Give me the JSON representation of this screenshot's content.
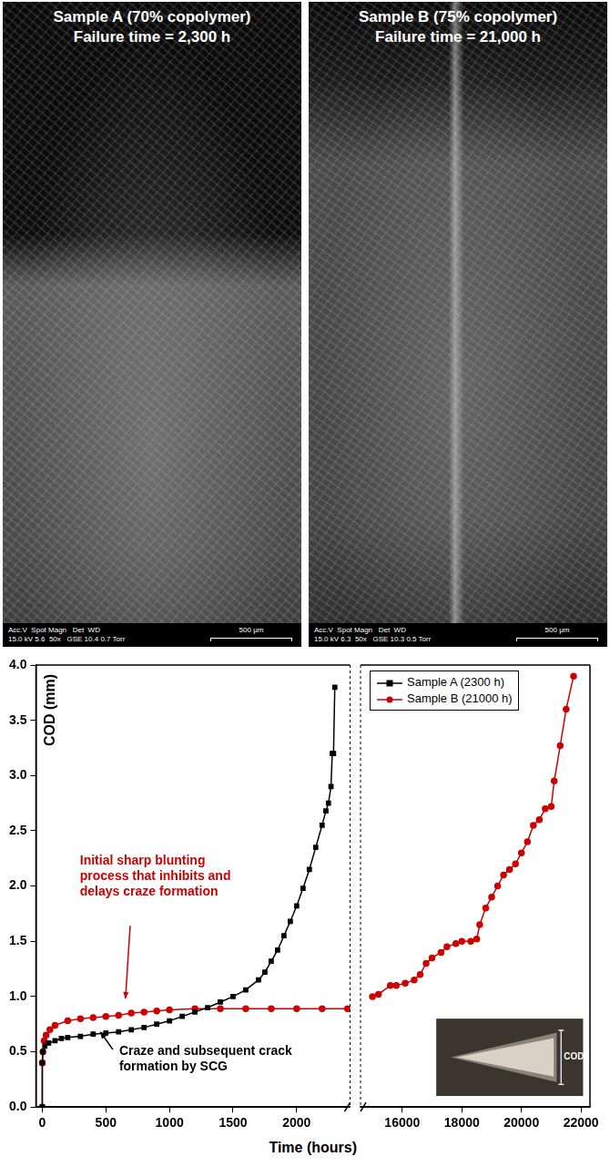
{
  "panels": [
    {
      "title": "Sample A (70% copolymer)",
      "subtitle": "Failure time = 2,300 h",
      "info_header": "Acc.V  Spot Magn   Det  WD",
      "info_values": "15.0 kV 5.6  50x   GSE 10.4 0.7 Torr",
      "scale_bar": "500 μm"
    },
    {
      "title": "Sample B (75% copolymer)",
      "subtitle": "Failure time = 21,000 h",
      "info_header": "Acc.V  Spot Magn   Det  WD",
      "info_values": "15.0 kV 6.3  50x   GSE 10.3 0.5 Torr",
      "scale_bar": "500 μm"
    }
  ],
  "chart_data": [
    {
      "type": "line",
      "xlabel": "Time (hours)",
      "ylabel": "COD (mm)",
      "xlim": [
        -50,
        2420
      ],
      "xticks": [
        0,
        500,
        1000,
        1500,
        2000
      ],
      "ylim": [
        0,
        4
      ],
      "yticks": [
        {
          "value": 0,
          "label": "0.0"
        },
        {
          "value": 0.5,
          "label": "0.5"
        },
        {
          "value": 1,
          "label": "1.0"
        },
        {
          "value": 1.5,
          "label": "1.5"
        },
        {
          "value": 2,
          "label": "2.0"
        },
        {
          "value": 2.5,
          "label": "2.5"
        },
        {
          "value": 3,
          "label": "3.0"
        },
        {
          "value": 3.5,
          "label": "3.5"
        },
        {
          "value": 4,
          "label": "4.0"
        }
      ],
      "grid": false,
      "annotations": [
        {
          "text": "Initial sharp blunting process that inhibits and delays craze formation",
          "color": "#cc0000"
        },
        {
          "text": "Craze and subsequent crack formation by SCG",
          "color": "#000000"
        }
      ],
      "series": [
        {
          "color": "#000000",
          "marker": "square",
          "x": [
            0,
            0,
            5,
            20,
            50,
            100,
            150,
            200,
            300,
            400,
            500,
            600,
            700,
            800,
            900,
            1000,
            1100,
            1200,
            1300,
            1400,
            1500,
            1600,
            1700,
            1750,
            1800,
            1850,
            1900,
            1950,
            2000,
            2050,
            2100,
            2150,
            2200,
            2230,
            2250,
            2270,
            2280,
            2290,
            2300
          ],
          "values": [
            0,
            0.4,
            0.5,
            0.55,
            0.58,
            0.6,
            0.62,
            0.63,
            0.64,
            0.66,
            0.67,
            0.68,
            0.7,
            0.72,
            0.75,
            0.78,
            0.82,
            0.86,
            0.9,
            0.95,
            1.0,
            1.06,
            1.15,
            1.22,
            1.32,
            1.42,
            1.55,
            1.68,
            1.82,
            1.98,
            2.15,
            2.35,
            2.55,
            2.68,
            2.75,
            2.9,
            3.2,
            3.2,
            3.8
          ]
        },
        {
          "color": "#cc0000",
          "marker": "circle",
          "x": [
            0,
            0,
            5,
            15,
            30,
            60,
            100,
            200,
            300,
            400,
            500,
            600,
            700,
            800,
            900,
            1000,
            1200,
            1400,
            1600,
            1800,
            2000,
            2200,
            2400
          ],
          "values": [
            0,
            0.4,
            0.5,
            0.6,
            0.65,
            0.7,
            0.74,
            0.78,
            0.8,
            0.81,
            0.82,
            0.83,
            0.85,
            0.86,
            0.87,
            0.88,
            0.89,
            0.89,
            0.89,
            0.89,
            0.89,
            0.89,
            0.89
          ]
        }
      ]
    },
    {
      "type": "line",
      "xlim": [
        14600,
        22300
      ],
      "xticks": [
        16000,
        18000,
        20000,
        22000
      ],
      "ylim": [
        0,
        4
      ],
      "yticks": [
        {
          "value": 0,
          "label": "0.0"
        },
        {
          "value": 0.5,
          "label": "0.5"
        },
        {
          "value": 1,
          "label": "1.0"
        },
        {
          "value": 1.5,
          "label": "1.5"
        },
        {
          "value": 2,
          "label": "2.0"
        },
        {
          "value": 2.5,
          "label": "2.5"
        },
        {
          "value": 3,
          "label": "3.0"
        },
        {
          "value": 3.5,
          "label": "3.5"
        },
        {
          "value": 4,
          "label": "4.0"
        }
      ],
      "grid": false,
      "tick_labels": "x",
      "legend": "top-left",
      "annotations": [
        {
          "text": "COD",
          "color": "#ffffff"
        }
      ],
      "series": [
        {
          "name": "Sample A (2300 h)",
          "color": "#000000",
          "marker": "square",
          "x": [],
          "values": []
        },
        {
          "name": "Sample B (21000 h)",
          "color": "#cc0000",
          "marker": "circle",
          "x": [
            15000,
            15200,
            15600,
            15800,
            16100,
            16400,
            16600,
            16800,
            17000,
            17300,
            17500,
            17800,
            18000,
            18300,
            18500,
            18600,
            18800,
            19000,
            19200,
            19400,
            19600,
            19800,
            20000,
            20200,
            20400,
            20600,
            20800,
            21000,
            21100,
            21300,
            21500,
            21750
          ],
          "values": [
            1.0,
            1.02,
            1.1,
            1.1,
            1.12,
            1.15,
            1.2,
            1.3,
            1.35,
            1.4,
            1.45,
            1.48,
            1.5,
            1.5,
            1.52,
            1.65,
            1.8,
            1.9,
            2.0,
            2.1,
            2.15,
            2.2,
            2.3,
            2.4,
            2.55,
            2.6,
            2.7,
            2.72,
            2.95,
            3.27,
            3.6,
            3.9
          ]
        }
      ]
    }
  ]
}
